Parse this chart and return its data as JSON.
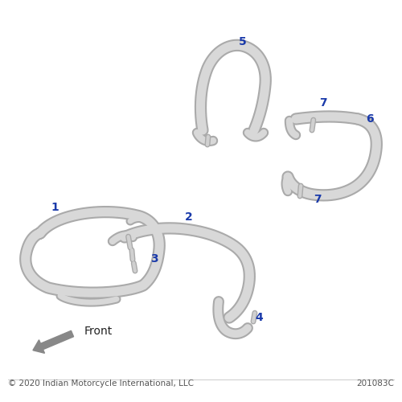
{
  "background_color": "#ffffff",
  "label_color": "#1a3aaa",
  "part_color": "#d8d8d8",
  "part_edge_color": "#aaaaaa",
  "text_color": "#333333",
  "shadow_color": "#bbbbbb",
  "copyright_text": "© 2020 Indian Motorcycle International, LLC",
  "doc_number": "201083C",
  "front_label": "Front"
}
